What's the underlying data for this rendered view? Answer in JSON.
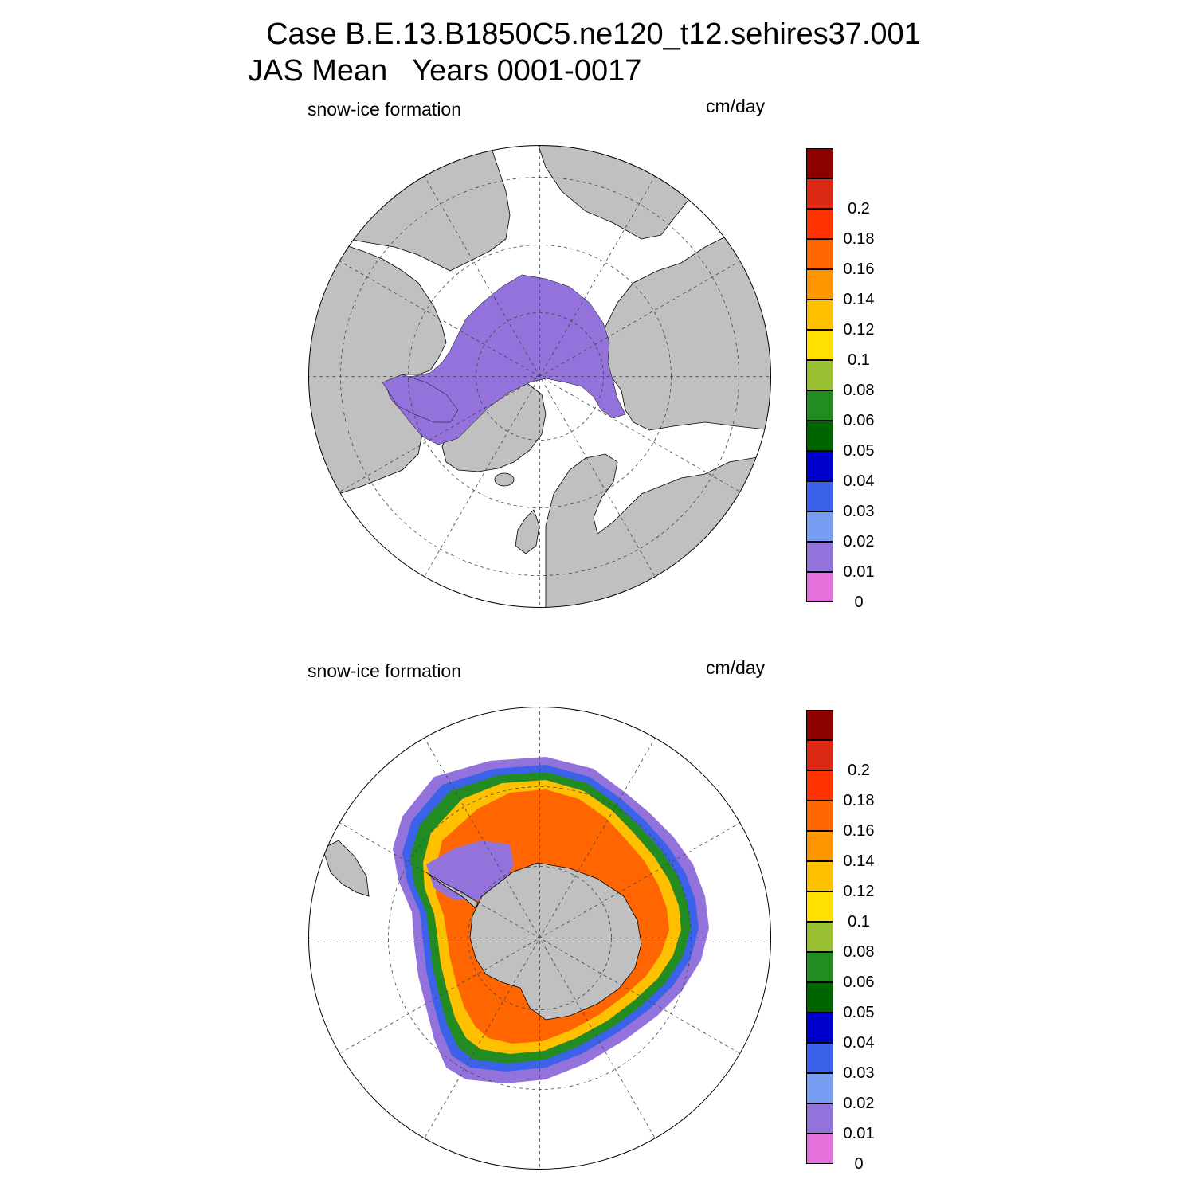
{
  "title": {
    "line1": "Case B.E.13.B1850C5.ne120_t12.sehires37.001",
    "line2": "JAS Mean   Years 0001-0017"
  },
  "panels": [
    {
      "hemisphere": "north",
      "variable_label": "snow-ice formation",
      "units_label": "cm/day"
    },
    {
      "hemisphere": "south",
      "variable_label": "snow-ice formation",
      "units_label": "cm/day"
    }
  ],
  "colorbar": {
    "colors": [
      "#e56fdb",
      "#9372dc",
      "#789ef4",
      "#3d62ea",
      "#0000cc",
      "#006400",
      "#228b22",
      "#9ac034",
      "#ffe000",
      "#ffc000",
      "#ff9500",
      "#ff6500",
      "#ff3300",
      "#dd2a14",
      "#8b0000"
    ],
    "tick_labels": [
      "0",
      "0.01",
      "0.02",
      "0.03",
      "0.04",
      "0.05",
      "0.06",
      "0.08",
      "0.1",
      "0.12",
      "0.14",
      "0.16",
      "0.18",
      "0.2"
    ]
  },
  "map_colors": {
    "land": "#c0c0c0",
    "ocean": "#ffffff",
    "low": "#9372dc"
  }
}
